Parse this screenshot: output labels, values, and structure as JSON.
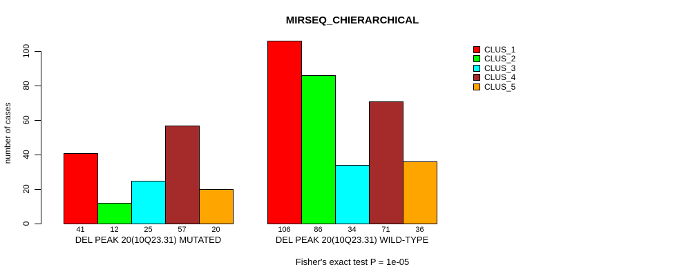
{
  "chart_data": {
    "type": "bar",
    "title": "MIRSEQ_CHIERARCHICAL",
    "ylabel": "number of cases",
    "xlabel": "",
    "ylim": [
      0,
      106
    ],
    "yticks": [
      0,
      20,
      40,
      60,
      80,
      100
    ],
    "grid": false,
    "legend_position": "right",
    "categories": [
      "DEL PEAK 20(10Q23.31) MUTATED",
      "DEL PEAK 20(10Q23.31) WILD-TYPE"
    ],
    "series": [
      {
        "name": "CLUS_1",
        "color": "#ff0000",
        "values": [
          41,
          106
        ]
      },
      {
        "name": "CLUS_2",
        "color": "#00ff00",
        "values": [
          12,
          86
        ]
      },
      {
        "name": "CLUS_3",
        "color": "#00ffff",
        "values": [
          25,
          34
        ]
      },
      {
        "name": "CLUS_4",
        "color": "#a52a2a",
        "values": [
          57,
          71
        ]
      },
      {
        "name": "CLUS_5",
        "color": "#ffa500",
        "values": [
          20,
          36
        ]
      }
    ],
    "bar_value_labels": {
      "group1": [
        41,
        12,
        25,
        57,
        20
      ],
      "group2": [
        106,
        86,
        34,
        71,
        36
      ]
    },
    "annotation": "Fisher's exact test P = 1e-05",
    "bar_border_color": "#000000",
    "background_color": "#ffffff"
  },
  "legend": {
    "items": [
      {
        "label": "CLUS_1",
        "color": "#ff0000"
      },
      {
        "label": "CLUS_2",
        "color": "#00ff00"
      },
      {
        "label": "CLUS_3",
        "color": "#00ffff"
      },
      {
        "label": "CLUS_4",
        "color": "#a52a2a"
      },
      {
        "label": "CLUS_5",
        "color": "#ffa500"
      }
    ]
  }
}
